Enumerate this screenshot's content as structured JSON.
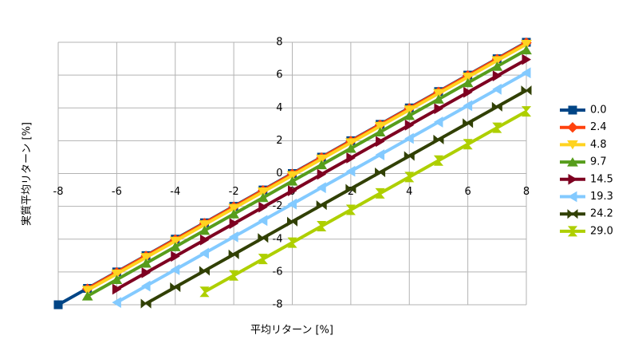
{
  "chart_data": {
    "type": "line",
    "x_label": "平均リターン [%]",
    "y_label": "実質平均リターン [%]",
    "x": [
      -8,
      -7,
      -6,
      -5,
      -4,
      -3,
      -2,
      -1,
      0,
      1,
      2,
      3,
      4,
      5,
      6,
      7,
      8
    ],
    "xlim": [
      -8,
      8
    ],
    "xticks": [
      -8,
      -6,
      -4,
      -2,
      0,
      2,
      4,
      6,
      8
    ],
    "ylim": [
      -8,
      8
    ],
    "yticks": [
      -8,
      -6,
      -4,
      -2,
      0,
      2,
      4,
      6,
      8
    ],
    "grid": true,
    "legend": "right",
    "series": [
      {
        "name": "0.0",
        "color": "#004586",
        "values": [
          -8,
          -7,
          -6,
          -5,
          -4,
          -3,
          -2,
          -1,
          0,
          1,
          2,
          3,
          4,
          5,
          6,
          7,
          8
        ]
      },
      {
        "name": "2.4",
        "color": "#ff420e",
        "values": [
          null,
          -7.03,
          -6.03,
          -5.03,
          -4.03,
          -3.03,
          -2.03,
          -1.03,
          -0.03,
          0.97,
          1.97,
          2.97,
          3.97,
          4.97,
          5.97,
          6.97,
          7.97
        ]
      },
      {
        "name": "4.8",
        "color": "#ffd320",
        "values": [
          null,
          -7.12,
          -6.12,
          -5.12,
          -4.12,
          -3.12,
          -2.12,
          -1.12,
          -0.12,
          0.88,
          1.88,
          2.88,
          3.88,
          4.88,
          5.88,
          6.88,
          7.88
        ]
      },
      {
        "name": "9.7",
        "color": "#579d1c",
        "values": [
          null,
          -7.47,
          -6.47,
          -5.47,
          -4.47,
          -3.47,
          -2.47,
          -1.47,
          -0.47,
          0.53,
          1.53,
          2.53,
          3.53,
          4.53,
          5.53,
          6.53,
          7.53
        ]
      },
      {
        "name": "14.5",
        "color": "#7e0021",
        "values": [
          null,
          null,
          -7.05,
          -6.05,
          -5.05,
          -4.05,
          -3.05,
          -2.05,
          -1.05,
          -0.05,
          0.95,
          1.95,
          2.95,
          3.95,
          4.95,
          5.95,
          6.95
        ]
      },
      {
        "name": "19.3",
        "color": "#83caff",
        "values": [
          null,
          null,
          -7.86,
          -6.86,
          -5.86,
          -4.86,
          -3.86,
          -2.86,
          -1.86,
          -0.86,
          0.14,
          1.14,
          2.14,
          3.14,
          4.14,
          5.14,
          6.14
        ]
      },
      {
        "name": "24.2",
        "color": "#314004",
        "values": [
          null,
          null,
          null,
          -7.93,
          -6.93,
          -5.93,
          -4.93,
          -3.93,
          -2.93,
          -1.93,
          -0.93,
          0.07,
          1.07,
          2.07,
          3.07,
          4.07,
          5.07
        ]
      },
      {
        "name": "29.0",
        "color": "#aecf00",
        "values": [
          null,
          null,
          null,
          null,
          null,
          -7.21,
          -6.21,
          -5.21,
          -4.21,
          -3.21,
          -2.21,
          -1.21,
          -0.21,
          0.79,
          1.79,
          2.79,
          3.79
        ]
      }
    ]
  }
}
